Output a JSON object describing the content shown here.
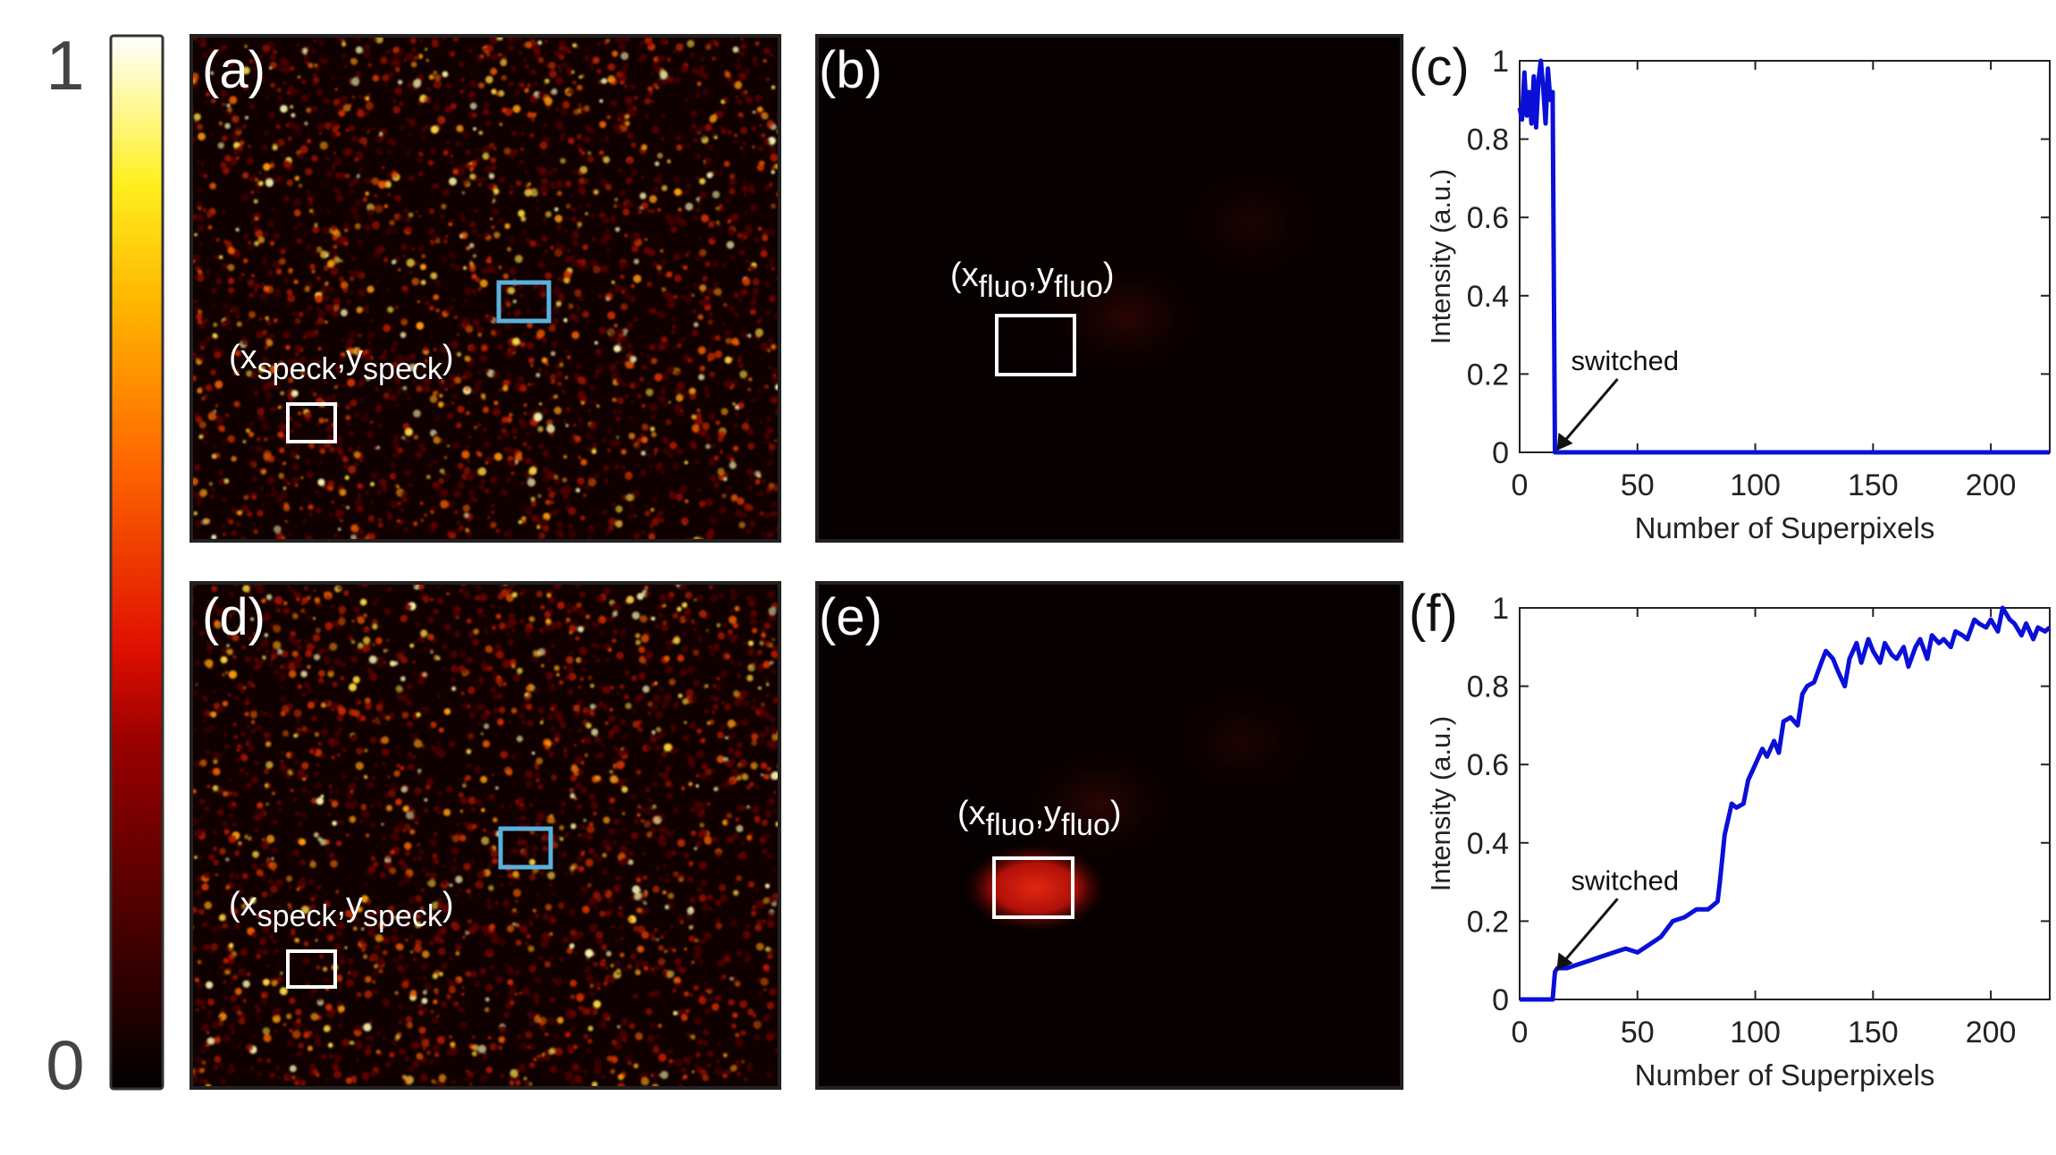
{
  "colorbar": {
    "max_label": "1",
    "min_label": "0"
  },
  "panels": {
    "a": {
      "label": "(a)",
      "annotation": {
        "var": "x",
        "sub": "speck",
        "var2": "y",
        "sub2": "speck"
      }
    },
    "b": {
      "label": "(b)",
      "annotation": {
        "var": "x",
        "sub": "fluo",
        "var2": "y",
        "sub2": "fluo"
      }
    },
    "c": {
      "label": "(c)"
    },
    "d": {
      "label": "(d)",
      "annotation": {
        "var": "x",
        "sub": "speck",
        "var2": "y",
        "sub2": "speck"
      }
    },
    "e": {
      "label": "(e)",
      "annotation": {
        "var": "x",
        "sub": "fluo",
        "var2": "y",
        "sub2": "fluo"
      }
    },
    "f": {
      "label": "(f)"
    }
  },
  "colors": {
    "line": "#0a10d8",
    "roi_white": "#ffffff",
    "roi_blue": "#5ab0dc",
    "frame": "#222222"
  },
  "chart_data": [
    {
      "type": "line",
      "panel": "c",
      "xlabel": "Number of Superpixels",
      "ylabel": "Intensity (a.u.)",
      "xlim": [
        0,
        225
      ],
      "ylim": [
        0,
        1
      ],
      "xticks": [
        0,
        50,
        100,
        150,
        200
      ],
      "yticks": [
        0,
        0.2,
        0.4,
        0.6,
        0.8,
        1
      ],
      "annotation": {
        "text": "switched",
        "x": 15,
        "y": 0
      },
      "series": [
        {
          "x": [
            0,
            1,
            2,
            3,
            4,
            5,
            6,
            7,
            8,
            9,
            10,
            11,
            12,
            13,
            14,
            15,
            16,
            20,
            40,
            60,
            80,
            100,
            120,
            140,
            160,
            180,
            200,
            225
          ],
          "y": [
            0.88,
            0.85,
            0.97,
            0.86,
            0.92,
            0.84,
            0.96,
            0.83,
            0.95,
            1.0,
            0.93,
            0.84,
            0.98,
            0.9,
            0.92,
            0.0,
            0.0,
            0.0,
            0.0,
            0.0,
            0.0,
            0.0,
            0.0,
            0.0,
            0.0,
            0.0,
            0.0,
            0.0
          ]
        }
      ]
    },
    {
      "type": "line",
      "panel": "f",
      "xlabel": "Number of Superpixels",
      "ylabel": "Intensity (a.u.)",
      "xlim": [
        0,
        225
      ],
      "ylim": [
        0,
        1
      ],
      "xticks": [
        0,
        50,
        100,
        150,
        200
      ],
      "yticks": [
        0,
        0.2,
        0.4,
        0.6,
        0.8,
        1
      ],
      "annotation": {
        "text": "switched",
        "x": 15,
        "y": 0.07
      },
      "series": [
        {
          "x": [
            0,
            14,
            15,
            16,
            20,
            25,
            30,
            35,
            40,
            45,
            50,
            55,
            60,
            65,
            70,
            75,
            80,
            84,
            85,
            87,
            90,
            92,
            95,
            97,
            100,
            103,
            105,
            108,
            110,
            112,
            115,
            118,
            120,
            122,
            125,
            128,
            130,
            133,
            135,
            138,
            140,
            143,
            145,
            148,
            150,
            153,
            155,
            158,
            160,
            163,
            165,
            168,
            170,
            173,
            175,
            178,
            180,
            183,
            185,
            188,
            190,
            193,
            195,
            198,
            200,
            203,
            205,
            208,
            210,
            213,
            215,
            218,
            220,
            223,
            225
          ],
          "y": [
            0,
            0,
            0.07,
            0.08,
            0.08,
            0.09,
            0.1,
            0.11,
            0.12,
            0.13,
            0.12,
            0.14,
            0.16,
            0.2,
            0.21,
            0.23,
            0.23,
            0.25,
            0.3,
            0.42,
            0.5,
            0.49,
            0.5,
            0.56,
            0.6,
            0.64,
            0.62,
            0.66,
            0.63,
            0.71,
            0.72,
            0.7,
            0.78,
            0.8,
            0.81,
            0.86,
            0.89,
            0.87,
            0.84,
            0.8,
            0.87,
            0.91,
            0.86,
            0.92,
            0.89,
            0.86,
            0.91,
            0.88,
            0.87,
            0.9,
            0.85,
            0.9,
            0.92,
            0.87,
            0.93,
            0.91,
            0.92,
            0.9,
            0.94,
            0.93,
            0.92,
            0.97,
            0.96,
            0.95,
            0.97,
            0.94,
            1.0,
            0.97,
            0.96,
            0.93,
            0.96,
            0.92,
            0.95,
            0.94,
            0.95
          ]
        }
      ]
    }
  ]
}
